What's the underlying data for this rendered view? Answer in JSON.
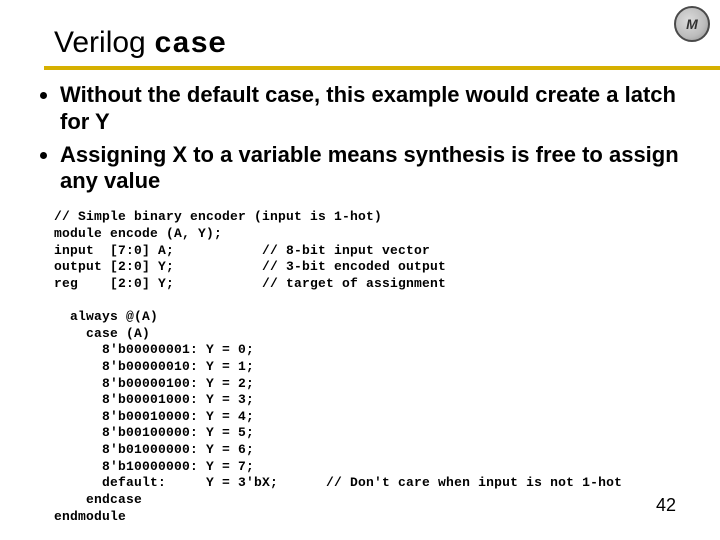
{
  "logo_text": "M",
  "title_prefix": "Verilog ",
  "title_mono": "case",
  "rule_color": "#d6b000",
  "bullets": [
    "Without the default case, this example would create a latch for Y",
    "Assigning X to a variable means synthesis is free to assign any value"
  ],
  "code": "// Simple binary encoder (input is 1-hot)\nmodule encode (A, Y);\ninput  [7:0] A;           // 8-bit input vector\noutput [2:0] Y;           // 3-bit encoded output\nreg    [2:0] Y;           // target of assignment\n\n  always @(A)\n    case (A)\n      8'b00000001: Y = 0;\n      8'b00000010: Y = 1;\n      8'b00000100: Y = 2;\n      8'b00001000: Y = 3;\n      8'b00010000: Y = 4;\n      8'b00100000: Y = 5;\n      8'b01000000: Y = 6;\n      8'b10000000: Y = 7;\n      default:     Y = 3'bX;      // Don't care when input is not 1-hot\n    endcase\nendmodule",
  "page_number": "42",
  "colors": {
    "background": "#ffffff",
    "text": "#000000",
    "rule": "#d6b000"
  },
  "fonts": {
    "sans": "Arial",
    "mono": "Courier New",
    "title_size_pt": 30,
    "bullet_size_pt": 22,
    "code_size_pt": 13
  }
}
